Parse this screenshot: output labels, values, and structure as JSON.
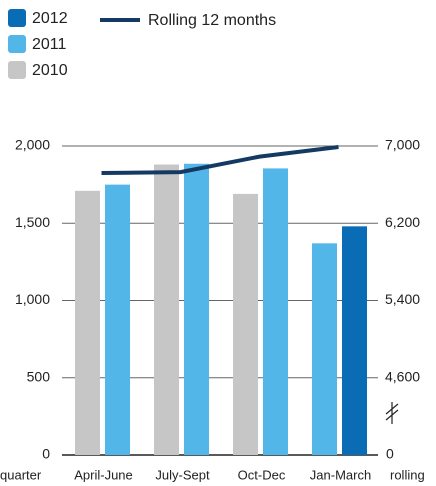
{
  "chart_data": {
    "type": "bar",
    "categories": [
      "April-June",
      "July-Sept",
      "Oct-Dec",
      "Jan-March"
    ],
    "series": [
      {
        "name": "2012",
        "color": "#0a6cb5",
        "values": [
          null,
          null,
          null,
          1480
        ]
      },
      {
        "name": "2011",
        "color": "#52b6e8",
        "values": [
          1750,
          1885,
          1855,
          1370
        ]
      },
      {
        "name": "2010",
        "color": "#c6c6c6",
        "values": [
          1710,
          1880,
          1690,
          null
        ]
      },
      {
        "name": "Rolling 12 months",
        "color": "#143a64",
        "type": "line",
        "axis": "y2",
        "values": [
          6720,
          6730,
          6890,
          6990
        ]
      }
    ],
    "ylim": [
      0,
      2000
    ],
    "yticks": [
      0,
      500,
      {
        "value": 1000,
        "label": "1,000"
      },
      {
        "value": 1500,
        "label": "1,500"
      },
      {
        "value": 2000,
        "label": "2,000"
      }
    ],
    "y2lim": [
      3800,
      7000
    ],
    "y2ticks": [
      {
        "value": 4600,
        "label": "4,600"
      },
      {
        "value": 5400,
        "label": "5,400"
      },
      {
        "value": 6200,
        "label": "6,200"
      },
      {
        "value": 7000,
        "label": "7,000"
      }
    ],
    "y2_break_tick": 0,
    "xlabel": "quarter",
    "y2label": "rolling",
    "grid": true
  }
}
